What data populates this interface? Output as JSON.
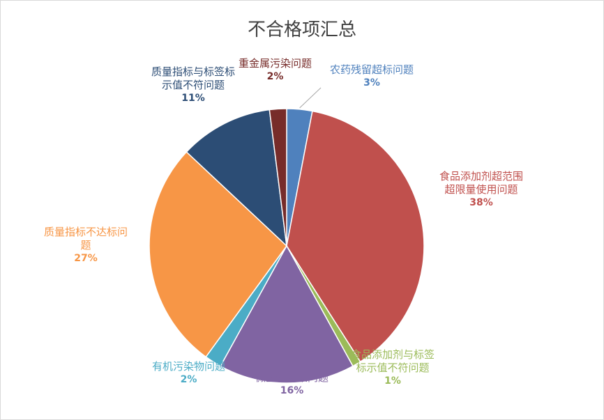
{
  "chart_data": {
    "type": "pie",
    "title": "不合格项汇总",
    "slices": [
      {
        "label": "农药残留超标问题",
        "label_lines": [
          "农药残留超标问题"
        ],
        "value": 3,
        "pct_text": "3%",
        "color": "#4f81bd"
      },
      {
        "label": "食品添加剂超范围超限量使用问题",
        "label_lines": [
          "食品添加剂超范围",
          "超限量使用问题"
        ],
        "value": 38,
        "pct_text": "38%",
        "color": "#c0504d"
      },
      {
        "label": "食品添加剂与标签标示值不符问题",
        "label_lines": [
          "食品添加剂与标签",
          "标示值不符问题"
        ],
        "value": 1,
        "pct_text": "1%",
        "color": "#9bbb59"
      },
      {
        "label": "微生物污染问题",
        "label_lines": [
          "微生物污染问题"
        ],
        "value": 16,
        "pct_text": "16%",
        "color": "#8064a2"
      },
      {
        "label": "有机污染物问题",
        "label_lines": [
          "有机污染物问题"
        ],
        "value": 2,
        "pct_text": "2%",
        "color": "#4bacc6"
      },
      {
        "label": "质量指标不达标问题",
        "label_lines": [
          "质量指标不达标问",
          "题"
        ],
        "value": 27,
        "pct_text": "27%",
        "color": "#f79646"
      },
      {
        "label": "质量指标与标签标示值不符问题",
        "label_lines": [
          "质量指标与标签标",
          "示值不符问题"
        ],
        "value": 11,
        "pct_text": "11%",
        "color": "#2c4d75"
      },
      {
        "label": "重金属污染问题",
        "label_lines": [
          "重金属污染问题"
        ],
        "value": 2,
        "pct_text": "2%",
        "color": "#772c2a"
      }
    ]
  }
}
